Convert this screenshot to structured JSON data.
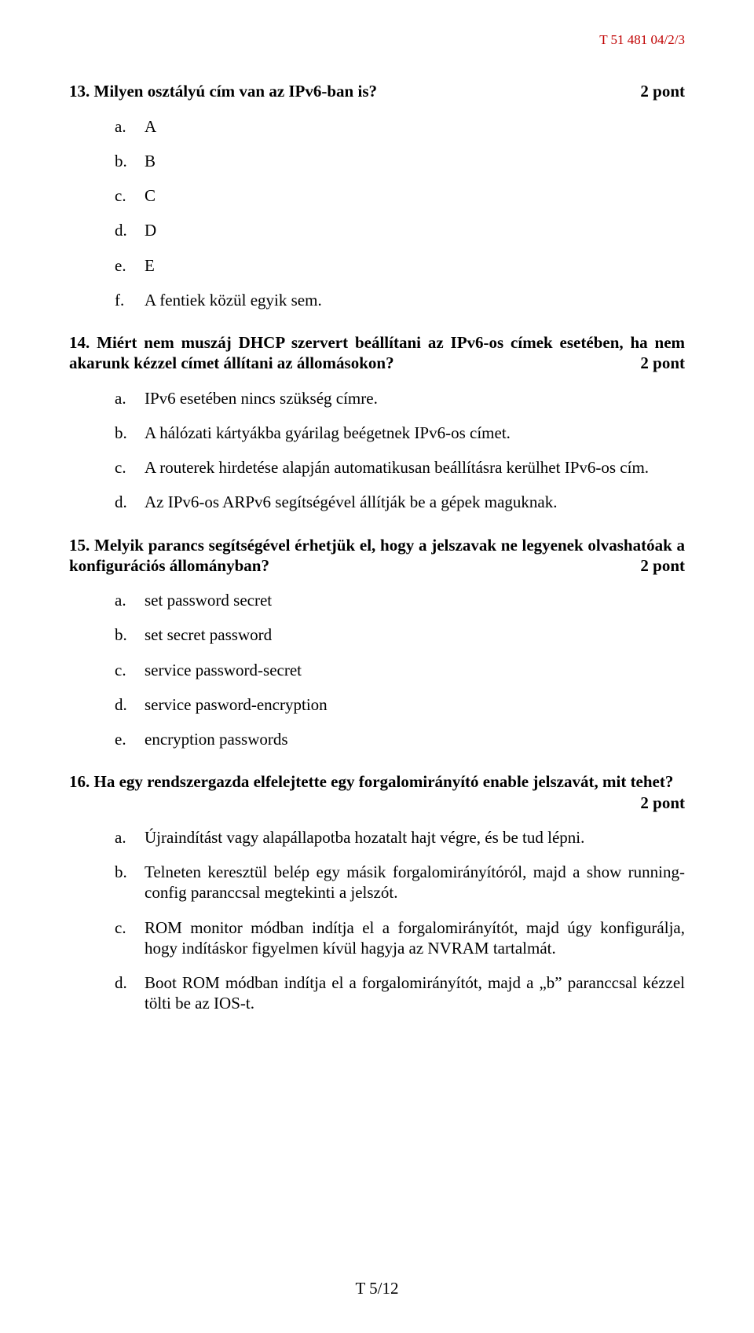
{
  "header": {
    "doc_id": "T 51 481 04/2/3"
  },
  "footer": {
    "page_label": "T 5/12"
  },
  "labels": {
    "points_suffix": "pont"
  },
  "questions": [
    {
      "number": "13.",
      "text": "Milyen osztályú cím van az IPv6-ban is?",
      "points": "2 pont",
      "options": [
        {
          "marker": "a.",
          "text": "A"
        },
        {
          "marker": "b.",
          "text": "B"
        },
        {
          "marker": "c.",
          "text": "C"
        },
        {
          "marker": "d.",
          "text": "D"
        },
        {
          "marker": "e.",
          "text": "E"
        },
        {
          "marker": "f.",
          "text": "A fentiek közül egyik sem."
        }
      ]
    },
    {
      "number": "14.",
      "text": "Miért nem muszáj DHCP szervert beállítani az IPv6-os címek esetében, ha nem akarunk kézzel címet állítani az állomásokon?",
      "points": "2 pont",
      "options": [
        {
          "marker": "a.",
          "text": "IPv6 esetében nincs szükség címre."
        },
        {
          "marker": "b.",
          "text": "A hálózati kártyákba gyárilag beégetnek IPv6-os címet."
        },
        {
          "marker": "c.",
          "text": "A routerek hirdetése alapján automatikusan beállításra kerülhet IPv6-os cím."
        },
        {
          "marker": "d.",
          "text": "Az IPv6-os ARPv6 segítségével állítják be a gépek maguknak."
        }
      ]
    },
    {
      "number": "15.",
      "text": "Melyik parancs segítségével érhetjük el, hogy a jelszavak ne legyenek olvashatóak a konfigurációs állományban?",
      "points": "2 pont",
      "options": [
        {
          "marker": "a.",
          "text": "set password secret"
        },
        {
          "marker": "b.",
          "text": "set secret password"
        },
        {
          "marker": "c.",
          "text": "service password-secret"
        },
        {
          "marker": "d.",
          "text": "service pasword-encryption"
        },
        {
          "marker": "e.",
          "text": "encryption passwords"
        }
      ]
    },
    {
      "number": "16.",
      "text": "Ha egy rendszergazda elfelejtette egy forgalomirányító enable jelszavát, mit tehet?",
      "points": "2 pont",
      "options": [
        {
          "marker": "a.",
          "text": "Újraindítást vagy alapállapotba hozatalt hajt végre, és be tud lépni."
        },
        {
          "marker": "b.",
          "text": "Telneten keresztül belép egy másik forgalomirányítóról, majd a show running-config paranccsal megtekinti a jelszót."
        },
        {
          "marker": "c.",
          "text": "ROM monitor módban indítja el a forgalomirányítót, majd úgy konfigurálja, hogy indításkor figyelmen kívül hagyja az NVRAM tartalmát."
        },
        {
          "marker": "d.",
          "text": "Boot ROM módban indítja el a forgalomirányítót, majd a „b” paranccsal kézzel tölti be az IOS-t."
        }
      ]
    }
  ]
}
